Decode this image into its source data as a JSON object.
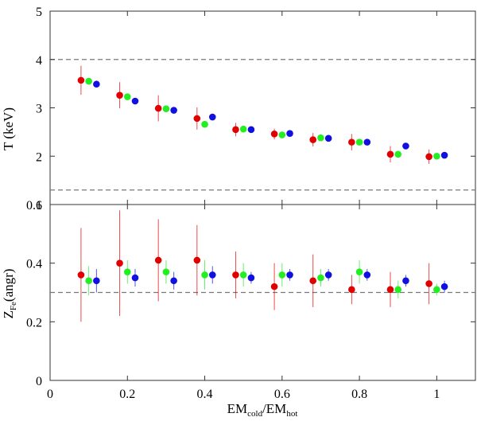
{
  "chart_data": [
    {
      "type": "scatter",
      "title": "",
      "xlabel": "EM_cold/EM_hot",
      "ylabel": "T (keV)",
      "xlim": [
        0,
        1.1
      ],
      "ylim": [
        1,
        5
      ],
      "yticks": [
        "1",
        "2",
        "3",
        "4",
        "5"
      ],
      "show_x_tick_labels": false,
      "reference_lines": [
        4.0,
        1.3
      ],
      "grid": false,
      "series": [
        {
          "color": "#e00000",
          "points": [
            {
              "x": 0.08,
              "y": 3.57,
              "err": 0.3
            },
            {
              "x": 0.18,
              "y": 3.26,
              "err": 0.27
            },
            {
              "x": 0.28,
              "y": 2.99,
              "err": 0.27
            },
            {
              "x": 0.38,
              "y": 2.78,
              "err": 0.23
            },
            {
              "x": 0.48,
              "y": 2.55,
              "err": 0.14
            },
            {
              "x": 0.58,
              "y": 2.46,
              "err": 0.11
            },
            {
              "x": 0.68,
              "y": 2.34,
              "err": 0.14
            },
            {
              "x": 0.78,
              "y": 2.29,
              "err": 0.17
            },
            {
              "x": 0.88,
              "y": 2.04,
              "err": 0.17
            },
            {
              "x": 0.98,
              "y": 1.99,
              "err": 0.15
            }
          ]
        },
        {
          "color": "#22ee22",
          "points": [
            {
              "x": 0.1,
              "y": 3.55,
              "err": 0.05
            },
            {
              "x": 0.2,
              "y": 3.23,
              "err": 0.05
            },
            {
              "x": 0.3,
              "y": 2.98,
              "err": 0.05
            },
            {
              "x": 0.4,
              "y": 2.66,
              "err": 0.05
            },
            {
              "x": 0.5,
              "y": 2.56,
              "err": 0.05
            },
            {
              "x": 0.6,
              "y": 2.44,
              "err": 0.05
            },
            {
              "x": 0.7,
              "y": 2.38,
              "err": 0.05
            },
            {
              "x": 0.8,
              "y": 2.29,
              "err": 0.05
            },
            {
              "x": 0.9,
              "y": 2.04,
              "err": 0.05
            },
            {
              "x": 1.0,
              "y": 2.0,
              "err": 0.05
            }
          ]
        },
        {
          "color": "#1010e0",
          "points": [
            {
              "x": 0.12,
              "y": 3.49,
              "err": 0.04
            },
            {
              "x": 0.22,
              "y": 3.14,
              "err": 0.04
            },
            {
              "x": 0.32,
              "y": 2.95,
              "err": 0.04
            },
            {
              "x": 0.42,
              "y": 2.81,
              "err": 0.04
            },
            {
              "x": 0.52,
              "y": 2.55,
              "err": 0.04
            },
            {
              "x": 0.62,
              "y": 2.47,
              "err": 0.04
            },
            {
              "x": 0.72,
              "y": 2.37,
              "err": 0.04
            },
            {
              "x": 0.82,
              "y": 2.29,
              "err": 0.04
            },
            {
              "x": 0.92,
              "y": 2.21,
              "err": 0.04
            },
            {
              "x": 1.02,
              "y": 2.02,
              "err": 0.04
            }
          ]
        }
      ]
    },
    {
      "type": "scatter",
      "title": "",
      "xlabel": "EM_cold/EM_hot",
      "ylabel": "Z_Fe (angr)",
      "xlim": [
        0,
        1.1
      ],
      "ylim": [
        0,
        0.6
      ],
      "yticks": [
        "0",
        "0.2",
        "0.4",
        "0.6"
      ],
      "xticks": [
        "0",
        "0.2",
        "0.4",
        "0.6",
        "0.8",
        "1"
      ],
      "reference_lines": [
        0.3
      ],
      "grid": false,
      "series": [
        {
          "color": "#e00000",
          "points": [
            {
              "x": 0.08,
              "y": 0.36,
              "err": 0.16
            },
            {
              "x": 0.18,
              "y": 0.4,
              "err": 0.18
            },
            {
              "x": 0.28,
              "y": 0.41,
              "err": 0.14
            },
            {
              "x": 0.38,
              "y": 0.41,
              "err": 0.12
            },
            {
              "x": 0.48,
              "y": 0.36,
              "err": 0.08
            },
            {
              "x": 0.58,
              "y": 0.32,
              "err": 0.08
            },
            {
              "x": 0.68,
              "y": 0.34,
              "err": 0.09
            },
            {
              "x": 0.78,
              "y": 0.31,
              "err": 0.05
            },
            {
              "x": 0.88,
              "y": 0.31,
              "err": 0.06
            },
            {
              "x": 0.98,
              "y": 0.33,
              "err": 0.07
            }
          ]
        },
        {
          "color": "#22ee22",
          "points": [
            {
              "x": 0.1,
              "y": 0.34,
              "err": 0.05
            },
            {
              "x": 0.2,
              "y": 0.37,
              "err": 0.04
            },
            {
              "x": 0.3,
              "y": 0.37,
              "err": 0.04
            },
            {
              "x": 0.4,
              "y": 0.36,
              "err": 0.05
            },
            {
              "x": 0.5,
              "y": 0.36,
              "err": 0.04
            },
            {
              "x": 0.6,
              "y": 0.36,
              "err": 0.04
            },
            {
              "x": 0.7,
              "y": 0.35,
              "err": 0.03
            },
            {
              "x": 0.8,
              "y": 0.37,
              "err": 0.04
            },
            {
              "x": 0.9,
              "y": 0.31,
              "err": 0.03
            },
            {
              "x": 1.0,
              "y": 0.31,
              "err": 0.02
            }
          ]
        },
        {
          "color": "#1010e0",
          "points": [
            {
              "x": 0.12,
              "y": 0.34,
              "err": 0.04
            },
            {
              "x": 0.22,
              "y": 0.35,
              "err": 0.03
            },
            {
              "x": 0.32,
              "y": 0.34,
              "err": 0.03
            },
            {
              "x": 0.42,
              "y": 0.36,
              "err": 0.03
            },
            {
              "x": 0.52,
              "y": 0.35,
              "err": 0.02
            },
            {
              "x": 0.62,
              "y": 0.36,
              "err": 0.02
            },
            {
              "x": 0.72,
              "y": 0.36,
              "err": 0.02
            },
            {
              "x": 0.82,
              "y": 0.36,
              "err": 0.02
            },
            {
              "x": 0.92,
              "y": 0.34,
              "err": 0.02
            },
            {
              "x": 1.02,
              "y": 0.32,
              "err": 0.02
            }
          ]
        }
      ]
    }
  ],
  "labels": {
    "top_ylabel": "T (keV)",
    "bottom_ylabel_main": "Z",
    "bottom_ylabel_sub": "Fe",
    "bottom_ylabel_rest": "(angr)",
    "xlabel_main1": "EM",
    "xlabel_sub1": "cold",
    "xlabel_slash": "/EM",
    "xlabel_sub2": "hot"
  }
}
